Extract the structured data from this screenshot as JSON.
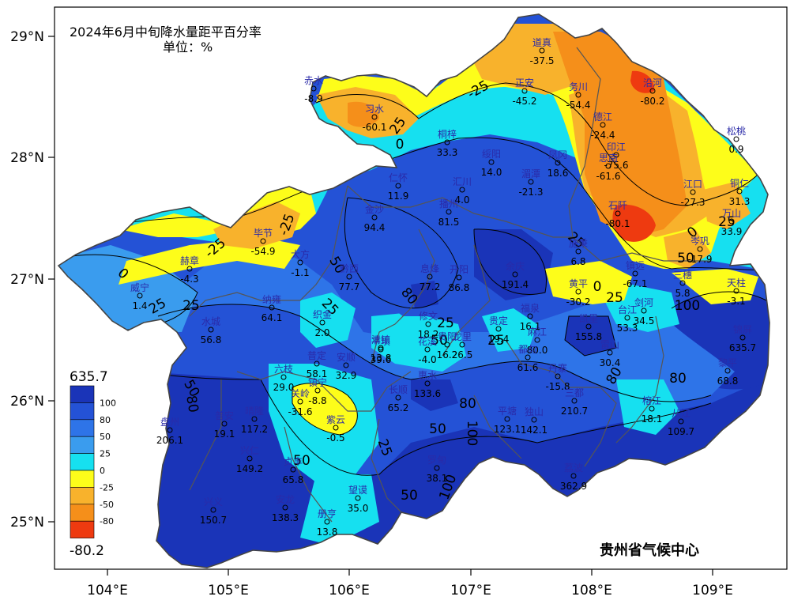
{
  "title": {
    "line1": "2024年6月中旬降水量距平百分率",
    "line2": "单位：%"
  },
  "agency": "贵州省气候中心",
  "axes": {
    "lon_ticks": [
      "104°E",
      "105°E",
      "106°E",
      "107°E",
      "108°E",
      "109°E"
    ],
    "lat_ticks": [
      "29°N",
      "28°N",
      "27°N",
      "26°N",
      "25°N"
    ]
  },
  "legend": {
    "max": "635.7",
    "min": "-80.2",
    "levels": [
      "100",
      "80",
      "50",
      "25",
      "0",
      "-25",
      "-50",
      "-80"
    ],
    "colors": [
      "#1a34b8",
      "#2452d6",
      "#2e74e8",
      "#3a9cee",
      "#16e0f0",
      "#fdfd1a",
      "#f8b22c",
      "#f58f1a",
      "#ee3a10"
    ]
  },
  "contour_labels": [
    "-25",
    "25",
    "0",
    "-25",
    "0",
    "25",
    "-25",
    "25",
    "0",
    "25",
    "50",
    "25",
    "50",
    "80",
    "25",
    "100",
    "80",
    "50",
    "25",
    "25",
    "50",
    "80",
    "50",
    "80",
    "100",
    "25",
    "100",
    "80",
    "50",
    "50",
    "0",
    "25"
  ],
  "stations": [
    {
      "name": "赤水",
      "value": "-8.9"
    },
    {
      "name": "习水",
      "value": "-60.1"
    },
    {
      "name": "道真",
      "value": "-37.5"
    },
    {
      "name": "正安",
      "value": "-45.2"
    },
    {
      "name": "务川",
      "value": "-54.4"
    },
    {
      "name": "沿河",
      "value": "-80.2"
    },
    {
      "name": "德江",
      "value": "-24.4"
    },
    {
      "name": "印江",
      "value": "-75.6"
    },
    {
      "name": "思南",
      "value": "-61.6"
    },
    {
      "name": "松桃",
      "value": "0.9"
    },
    {
      "name": "铜仁",
      "value": "31.3"
    },
    {
      "name": "江口",
      "value": "-27.3"
    },
    {
      "name": "石阡",
      "value": "-80.1"
    },
    {
      "name": "万山",
      "value": "33.9"
    },
    {
      "name": "桐梓",
      "value": "33.3"
    },
    {
      "name": "绥阳",
      "value": "14.0"
    },
    {
      "name": "凤冈",
      "value": "18.6"
    },
    {
      "name": "湄潭",
      "value": "-21.3"
    },
    {
      "name": "仁怀",
      "value": "11.9"
    },
    {
      "name": "汇川",
      "value": "4.0"
    },
    {
      "name": "金沙",
      "value": "94.4"
    },
    {
      "name": "播州",
      "value": "81.5"
    },
    {
      "name": "毕节",
      "value": "-54.9"
    },
    {
      "name": "大方",
      "value": "-1.1"
    },
    {
      "name": "赫章",
      "value": "-4.3"
    },
    {
      "name": "威宁",
      "value": "1.4"
    },
    {
      "name": "黔西",
      "value": "77.7"
    },
    {
      "name": "息烽",
      "value": "77.2"
    },
    {
      "name": "开阳",
      "value": "86.8"
    },
    {
      "name": "余庆",
      "value": "191.4"
    },
    {
      "name": "施秉",
      "value": "6.8"
    },
    {
      "name": "黄平",
      "value": "-30.2"
    },
    {
      "name": "镇远",
      "value": "-67.1"
    },
    {
      "name": "岑巩",
      "value": "-17.9"
    },
    {
      "name": "三穗",
      "value": "5.8"
    },
    {
      "name": "天柱",
      "value": "-3.1"
    },
    {
      "name": "纳雍",
      "value": "64.1"
    },
    {
      "name": "织金",
      "value": "2.0"
    },
    {
      "name": "水城",
      "value": "56.8"
    },
    {
      "name": "清镇",
      "value": "13.8"
    },
    {
      "name": "修文",
      "value": "18.2"
    },
    {
      "name": "贵阳",
      "value": "16.2"
    },
    {
      "name": "福泉",
      "value": "16.1"
    },
    {
      "name": "凯里",
      "value": "155.8"
    },
    {
      "name": "台江",
      "value": "53.3"
    },
    {
      "name": "剑河",
      "value": "34.5"
    },
    {
      "name": "锦屏",
      "value": "635.7"
    },
    {
      "name": "平坝",
      "value": "39.6"
    },
    {
      "name": "花溪",
      "value": "-4.0"
    },
    {
      "name": "龙里",
      "value": "26.5"
    },
    {
      "name": "贵定",
      "value": "19.4"
    },
    {
      "name": "麻江",
      "value": "80.0"
    },
    {
      "name": "都匀",
      "value": "61.6"
    },
    {
      "name": "雷山",
      "value": "30.4"
    },
    {
      "name": "丹寨",
      "value": "-15.8"
    },
    {
      "name": "榕江",
      "value": "18.1"
    },
    {
      "name": "黎平",
      "value": "68.8"
    },
    {
      "name": "从江",
      "value": "109.7"
    },
    {
      "name": "六枝",
      "value": "29.0"
    },
    {
      "name": "普定",
      "value": "58.1"
    },
    {
      "name": "安顺",
      "value": "32.9"
    },
    {
      "name": "镇宁",
      "value": "-8.8"
    },
    {
      "name": "关岭",
      "value": "-31.6"
    },
    {
      "name": "紫云",
      "value": "-0.5"
    },
    {
      "name": "长顺",
      "value": "65.2"
    },
    {
      "name": "惠水",
      "value": "133.6"
    },
    {
      "name": "盘州",
      "value": "206.1"
    },
    {
      "name": "普安",
      "value": "19.1"
    },
    {
      "name": "晴隆",
      "value": "117.2"
    },
    {
      "name": "兴仁",
      "value": "149.2"
    },
    {
      "name": "贞丰",
      "value": "65.8"
    },
    {
      "name": "兴义",
      "value": "150.7"
    },
    {
      "name": "安龙",
      "value": "138.3"
    },
    {
      "name": "册亨",
      "value": "13.8"
    },
    {
      "name": "望谟",
      "value": "35.0"
    },
    {
      "name": "罗甸",
      "value": "38.1"
    },
    {
      "name": "平塘",
      "value": "123.1"
    },
    {
      "name": "独山",
      "value": "142.1"
    },
    {
      "name": "三都",
      "value": "210.7"
    },
    {
      "name": "荔波",
      "value": "362.9"
    }
  ]
}
